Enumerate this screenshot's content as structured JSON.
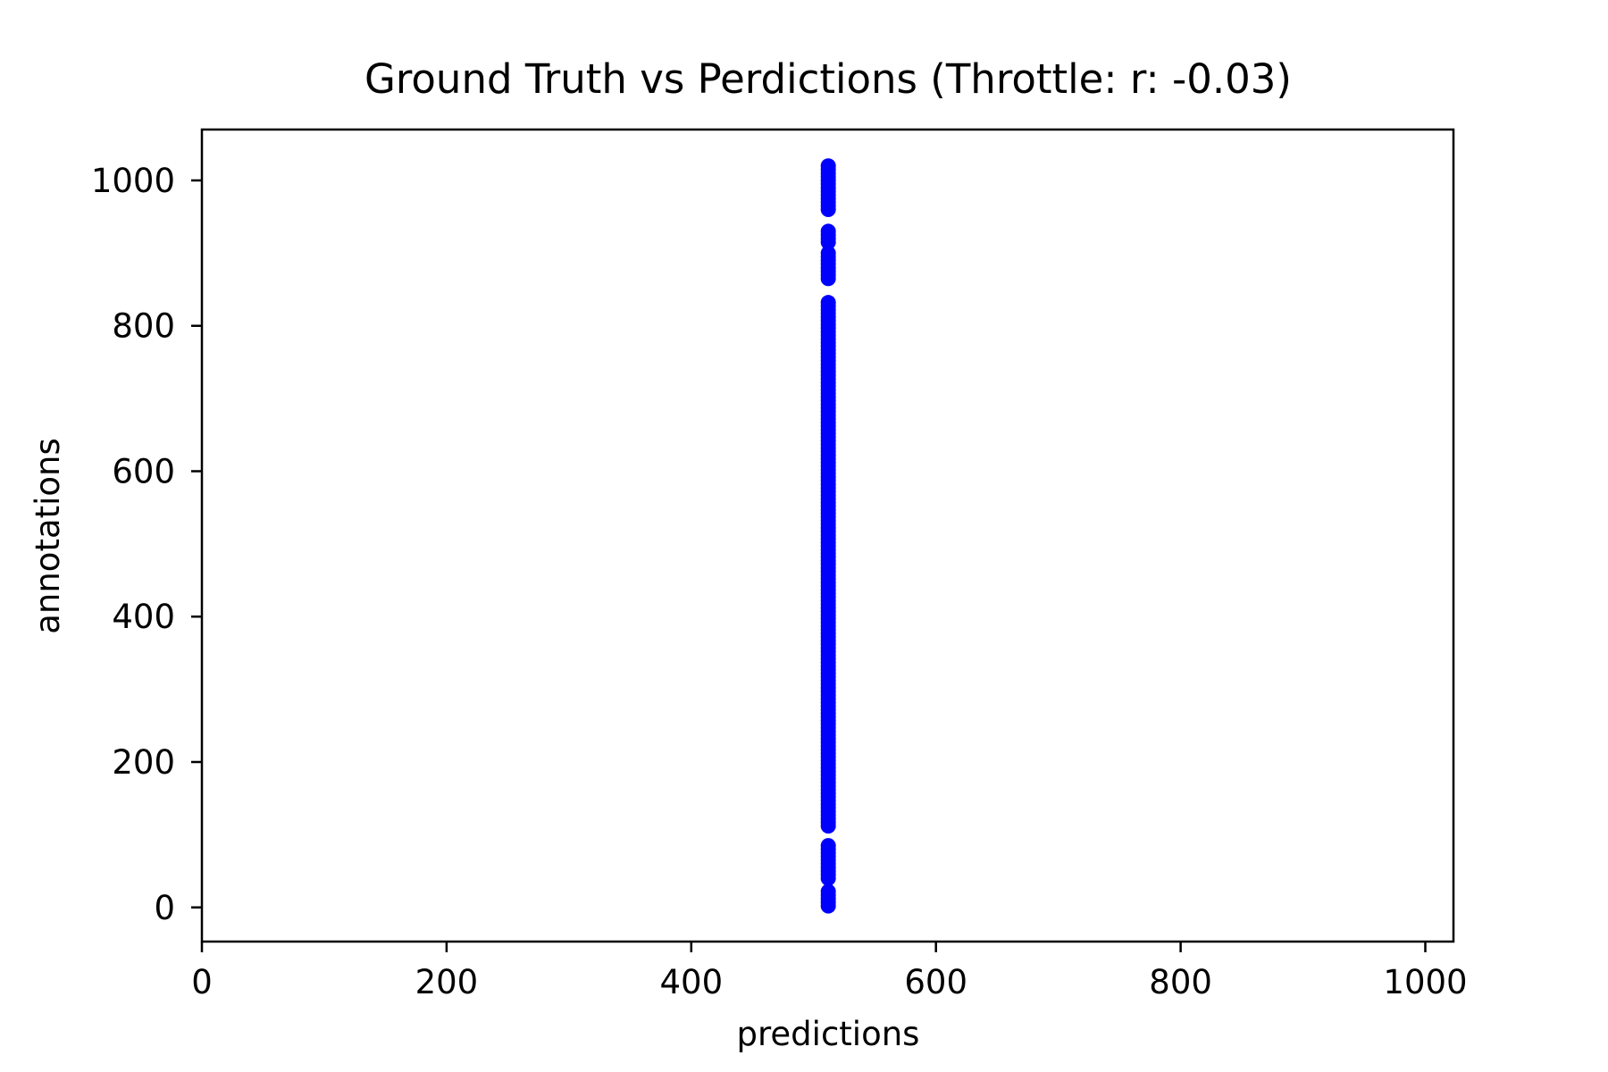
{
  "chart_data": {
    "type": "scatter",
    "title": "Ground Truth vs Perdictions (Throttle: r: -0.03)",
    "xlabel": "predictions",
    "ylabel": "annotations",
    "xlim": [
      0,
      1023
    ],
    "ylim": [
      -47,
      1070
    ],
    "xticks": [
      0,
      200,
      400,
      600,
      800,
      1000
    ],
    "yticks": [
      0,
      200,
      400,
      600,
      800,
      1000
    ],
    "xtick_labels": [
      "0",
      "200",
      "400",
      "600",
      "800",
      "1000"
    ],
    "ytick_labels": [
      "0",
      "200",
      "400",
      "600",
      "800",
      "1000"
    ],
    "grid": false,
    "marker_color": "#0000ff",
    "series": [
      {
        "x_constant": 512,
        "y": [
          2,
          7,
          12,
          17,
          22,
          40,
          45,
          50,
          55,
          60,
          65,
          70,
          75,
          80,
          85,
          112,
          117,
          122,
          127,
          132,
          137,
          142,
          147,
          152,
          157,
          162,
          167,
          172,
          177,
          182,
          187,
          192,
          197,
          202,
          207,
          212,
          217,
          222,
          227,
          232,
          237,
          242,
          247,
          252,
          257,
          262,
          267,
          272,
          277,
          282,
          287,
          292,
          297,
          302,
          307,
          312,
          317,
          322,
          327,
          332,
          337,
          342,
          347,
          352,
          357,
          362,
          367,
          372,
          377,
          382,
          387,
          392,
          397,
          402,
          407,
          412,
          417,
          422,
          427,
          432,
          437,
          442,
          447,
          452,
          457,
          462,
          467,
          472,
          477,
          482,
          487,
          492,
          497,
          502,
          507,
          512,
          517,
          522,
          527,
          532,
          537,
          542,
          547,
          552,
          557,
          562,
          567,
          572,
          577,
          582,
          587,
          592,
          597,
          602,
          607,
          612,
          617,
          622,
          627,
          632,
          637,
          642,
          647,
          652,
          657,
          662,
          667,
          672,
          677,
          682,
          687,
          692,
          697,
          702,
          707,
          712,
          717,
          722,
          727,
          732,
          737,
          742,
          747,
          752,
          757,
          762,
          767,
          772,
          777,
          782,
          787,
          792,
          797,
          802,
          807,
          812,
          817,
          822,
          827,
          832,
          865,
          870,
          875,
          880,
          885,
          890,
          895,
          900,
          915,
          920,
          925,
          930,
          960,
          965,
          970,
          975,
          980,
          985,
          990,
          995,
          1000,
          1005,
          1010,
          1015,
          1020
        ]
      }
    ]
  }
}
